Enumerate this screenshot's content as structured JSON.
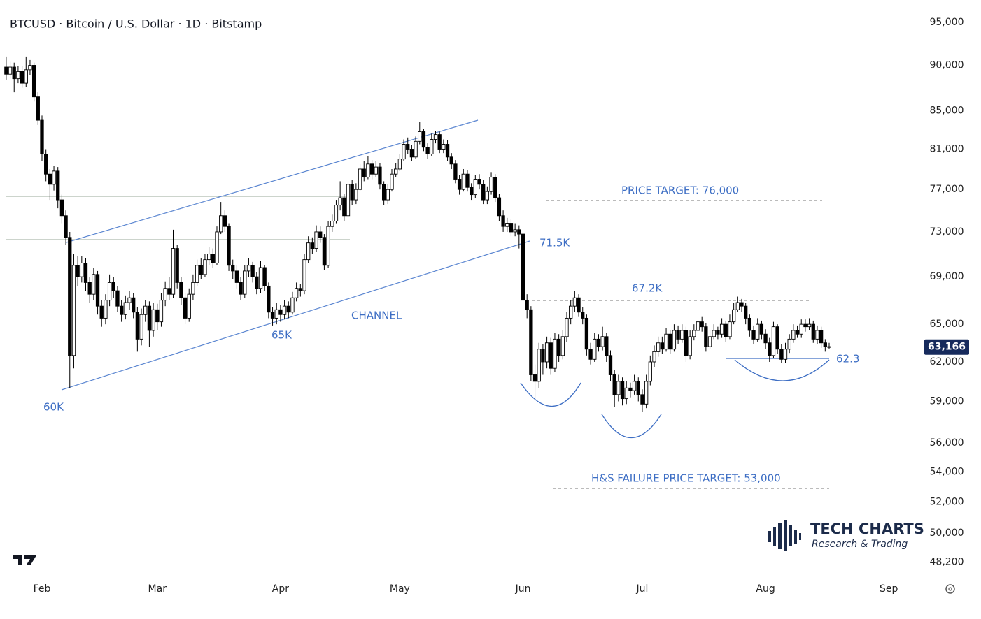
{
  "chart_data": {
    "type": "candlestick",
    "title": "BTCUSD · Bitcoin / U.S. Dollar · 1D · Bitstamp",
    "log_scale": true,
    "up_color": "#ffffff",
    "down_color": "#000000",
    "xlim": [
      -1.56,
      229
    ],
    "xticks": [
      {
        "value": 9,
        "label": "Feb"
      },
      {
        "value": 38,
        "label": "Mar"
      },
      {
        "value": 69,
        "label": "Apr"
      },
      {
        "value": 99,
        "label": "May"
      },
      {
        "value": 130,
        "label": "Jun"
      },
      {
        "value": 160,
        "label": "Jul"
      },
      {
        "value": 191,
        "label": "Aug"
      },
      {
        "value": 222,
        "label": "Sep"
      }
    ],
    "ylim": [
      47350,
      97700
    ],
    "yticks": [
      {
        "value": 95000,
        "label": "95,000"
      },
      {
        "value": 90000,
        "label": "90,000"
      },
      {
        "value": 85000,
        "label": "85,000"
      },
      {
        "value": 81000,
        "label": "81,000"
      },
      {
        "value": 77000,
        "label": "77,000"
      },
      {
        "value": 73000,
        "label": "73,000"
      },
      {
        "value": 69000,
        "label": "69,000"
      },
      {
        "value": 65000,
        "label": "65,000"
      },
      {
        "value": 62000,
        "label": "62,000"
      },
      {
        "value": 59000,
        "label": "59,000"
      },
      {
        "value": 56000,
        "label": "56,000"
      },
      {
        "value": 54000,
        "label": "54,000"
      },
      {
        "value": 52000,
        "label": "52,000"
      },
      {
        "value": 50000,
        "label": "50,000"
      },
      {
        "value": 48200,
        "label": "48,200"
      }
    ],
    "last_price_label": "63,166",
    "annotations": {
      "price_target": "PRICE TARGET: 76,000",
      "level_71": "71.5K",
      "level_67": "67.2K",
      "channel": "CHANNEL",
      "level_65": "65K",
      "level_60": "60K",
      "level_62": "62.3",
      "hs_target": "H&S FAILURE PRICE TARGET: 53,000"
    },
    "candles": [
      [
        89800,
        91000,
        88400,
        89000
      ],
      [
        89000,
        90400,
        88500,
        89800
      ],
      [
        89800,
        90300,
        87000,
        88500
      ],
      [
        88500,
        89900,
        88000,
        89300
      ],
      [
        89300,
        89900,
        87500,
        88000
      ],
      [
        88000,
        91000,
        87600,
        89500
      ],
      [
        89500,
        90600,
        88900,
        90000
      ],
      [
        90000,
        90300,
        86000,
        86500
      ],
      [
        86500,
        87000,
        83500,
        84000
      ],
      [
        84000,
        84500,
        79800,
        80500
      ],
      [
        80500,
        81000,
        77800,
        78500
      ],
      [
        78500,
        79000,
        76000,
        77500
      ],
      [
        77500,
        79300,
        76900,
        78800
      ],
      [
        78800,
        79200,
        75200,
        76000
      ],
      [
        76000,
        76500,
        73800,
        74500
      ],
      [
        74500,
        75000,
        71800,
        72500
      ],
      [
        72500,
        73000,
        60000,
        62500
      ],
      [
        62500,
        71000,
        61500,
        70000
      ],
      [
        70000,
        70800,
        68200,
        69000
      ],
      [
        69000,
        70800,
        68500,
        70200
      ],
      [
        70200,
        70600,
        67800,
        68500
      ],
      [
        68500,
        69000,
        66800,
        67500
      ],
      [
        67500,
        69800,
        67000,
        69200
      ],
      [
        69200,
        69500,
        65800,
        66500
      ],
      [
        66500,
        67000,
        64800,
        65500
      ],
      [
        65500,
        67500,
        65000,
        67000
      ],
      [
        67000,
        69200,
        66500,
        68500
      ],
      [
        68500,
        69000,
        67200,
        67800
      ],
      [
        67800,
        68200,
        66000,
        66500
      ],
      [
        66500,
        67000,
        65200,
        65800
      ],
      [
        65800,
        67400,
        65400,
        66800
      ],
      [
        66800,
        67800,
        66200,
        67200
      ],
      [
        67200,
        67600,
        65500,
        66000
      ],
      [
        66000,
        66400,
        62800,
        63800
      ],
      [
        63800,
        66300,
        63300,
        65800
      ],
      [
        65800,
        67000,
        65200,
        66500
      ],
      [
        66500,
        66900,
        63200,
        64500
      ],
      [
        64500,
        66800,
        64000,
        66200
      ],
      [
        66200,
        66700,
        64500,
        65200
      ],
      [
        65200,
        67600,
        64800,
        67000
      ],
      [
        67000,
        68600,
        66500,
        68000
      ],
      [
        68000,
        69000,
        67000,
        67500
      ],
      [
        67500,
        73200,
        67200,
        71500
      ],
      [
        71500,
        71800,
        68000,
        68500
      ],
      [
        68500,
        69000,
        66600,
        67200
      ],
      [
        67200,
        67600,
        65000,
        65500
      ],
      [
        65500,
        68000,
        65200,
        67500
      ],
      [
        67500,
        69200,
        67000,
        68500
      ],
      [
        68500,
        70500,
        68200,
        70000
      ],
      [
        70000,
        70600,
        68800,
        69200
      ],
      [
        69200,
        71000,
        69000,
        70500
      ],
      [
        70500,
        71600,
        70000,
        71000
      ],
      [
        71000,
        71500,
        69800,
        70200
      ],
      [
        70200,
        73500,
        70000,
        73000
      ],
      [
        73000,
        75800,
        72800,
        74500
      ],
      [
        74500,
        75000,
        73000,
        73500
      ],
      [
        73500,
        73800,
        69500,
        70000
      ],
      [
        70000,
        70500,
        68800,
        69500
      ],
      [
        69500,
        70000,
        68000,
        68500
      ],
      [
        68500,
        69000,
        67000,
        67500
      ],
      [
        67500,
        70000,
        67200,
        69500
      ],
      [
        69500,
        70600,
        69000,
        70000
      ],
      [
        70000,
        70300,
        68500,
        69000
      ],
      [
        69000,
        69400,
        67500,
        68000
      ],
      [
        68000,
        70400,
        67600,
        69800
      ],
      [
        69800,
        70000,
        67800,
        68200
      ],
      [
        68200,
        68500,
        65500,
        66000
      ],
      [
        66000,
        66400,
        64900,
        65500
      ],
      [
        65500,
        66800,
        65000,
        66200
      ],
      [
        66200,
        66600,
        65200,
        65800
      ],
      [
        65800,
        67000,
        65400,
        66500
      ],
      [
        66500,
        66900,
        65500,
        66000
      ],
      [
        66000,
        67700,
        65800,
        67200
      ],
      [
        67200,
        68500,
        66900,
        68000
      ],
      [
        68000,
        68400,
        67300,
        67800
      ],
      [
        67800,
        71000,
        67500,
        70500
      ],
      [
        70500,
        72600,
        70200,
        72000
      ],
      [
        72000,
        72500,
        71000,
        71500
      ],
      [
        71500,
        73600,
        71200,
        73000
      ],
      [
        73000,
        73500,
        72000,
        72500
      ],
      [
        72500,
        72800,
        69600,
        70000
      ],
      [
        70000,
        74000,
        69800,
        73500
      ],
      [
        73500,
        74600,
        73000,
        74000
      ],
      [
        74000,
        76000,
        73800,
        75500
      ],
      [
        75500,
        77800,
        75000,
        76200
      ],
      [
        76200,
        76600,
        74000,
        74500
      ],
      [
        74500,
        78000,
        74200,
        77500
      ],
      [
        77500,
        77900,
        75500,
        76000
      ],
      [
        76000,
        77600,
        75600,
        77000
      ],
      [
        77000,
        79500,
        76800,
        79000
      ],
      [
        79000,
        79800,
        77800,
        78200
      ],
      [
        78200,
        80300,
        78000,
        79500
      ],
      [
        79500,
        79900,
        78000,
        78500
      ],
      [
        78500,
        79800,
        78200,
        79200
      ],
      [
        79200,
        79600,
        77000,
        77500
      ],
      [
        77500,
        77800,
        75500,
        76000
      ],
      [
        76000,
        77500,
        75600,
        77000
      ],
      [
        77000,
        79000,
        76800,
        78500
      ],
      [
        78500,
        79600,
        78200,
        79000
      ],
      [
        79000,
        80500,
        78800,
        80000
      ],
      [
        80000,
        82000,
        79800,
        81500
      ],
      [
        81500,
        82200,
        80500,
        81000
      ],
      [
        81000,
        81400,
        79800,
        80200
      ],
      [
        80200,
        82300,
        80000,
        81800
      ],
      [
        81800,
        83800,
        81500,
        82800
      ],
      [
        82800,
        83100,
        80800,
        81200
      ],
      [
        81200,
        81600,
        80000,
        80500
      ],
      [
        80500,
        82600,
        80300,
        82000
      ],
      [
        82000,
        82900,
        81600,
        82500
      ],
      [
        82500,
        82800,
        80600,
        81000
      ],
      [
        81000,
        82000,
        80600,
        81500
      ],
      [
        81500,
        81900,
        79800,
        80200
      ],
      [
        80200,
        80600,
        79000,
        79500
      ],
      [
        79500,
        79900,
        77600,
        78000
      ],
      [
        78000,
        78400,
        76500,
        77000
      ],
      [
        77000,
        79000,
        76800,
        78500
      ],
      [
        78500,
        78900,
        76800,
        77200
      ],
      [
        77200,
        77600,
        76000,
        76500
      ],
      [
        76500,
        78400,
        76200,
        78000
      ],
      [
        78000,
        78500,
        77000,
        77500
      ],
      [
        77500,
        77900,
        75600,
        76000
      ],
      [
        76000,
        77300,
        75600,
        76800
      ],
      [
        76800,
        78700,
        76500,
        78200
      ],
      [
        78200,
        78500,
        75800,
        76200
      ],
      [
        76200,
        76600,
        74000,
        74500
      ],
      [
        74500,
        75000,
        73000,
        73500
      ],
      [
        73500,
        74300,
        73000,
        73800
      ],
      [
        73800,
        74200,
        72600,
        73000
      ],
      [
        73000,
        73800,
        72600,
        73200
      ],
      [
        73200,
        73600,
        71500,
        72800
      ],
      [
        72800,
        73200,
        66500,
        67000
      ],
      [
        67000,
        67500,
        65500,
        66200
      ],
      [
        66200,
        66500,
        60500,
        61000
      ],
      [
        61000,
        61800,
        59200,
        60500
      ],
      [
        60500,
        63500,
        60000,
        63000
      ],
      [
        63000,
        63400,
        61000,
        62000
      ],
      [
        62000,
        64000,
        61500,
        63500
      ],
      [
        63500,
        63900,
        61000,
        61500
      ],
      [
        61500,
        64300,
        61200,
        63800
      ],
      [
        63800,
        64200,
        62000,
        62500
      ],
      [
        62500,
        64500,
        62200,
        64000
      ],
      [
        64000,
        66000,
        63600,
        65500
      ],
      [
        65500,
        67000,
        65000,
        66500
      ],
      [
        66500,
        67800,
        66000,
        67200
      ],
      [
        67200,
        67500,
        65600,
        66000
      ],
      [
        66000,
        66400,
        65000,
        65500
      ],
      [
        65500,
        65800,
        62500,
        63000
      ],
      [
        63000,
        63500,
        61800,
        62200
      ],
      [
        62200,
        64300,
        62000,
        63800
      ],
      [
        63800,
        64200,
        62800,
        63200
      ],
      [
        63200,
        64800,
        62900,
        64000
      ],
      [
        64000,
        64300,
        62000,
        62500
      ],
      [
        62500,
        62900,
        60500,
        61000
      ],
      [
        61000,
        61400,
        58600,
        59500
      ],
      [
        59500,
        61000,
        59000,
        60500
      ],
      [
        60500,
        60800,
        58700,
        59200
      ],
      [
        59200,
        60500,
        58800,
        60000
      ],
      [
        60000,
        60400,
        59300,
        59800
      ],
      [
        59800,
        61000,
        59500,
        60500
      ],
      [
        60500,
        60800,
        59000,
        59500
      ],
      [
        59500,
        59900,
        58200,
        58800
      ],
      [
        58800,
        61000,
        58500,
        60500
      ],
      [
        60500,
        62500,
        60200,
        62000
      ],
      [
        62000,
        63300,
        61600,
        62800
      ],
      [
        62800,
        64000,
        62400,
        63500
      ],
      [
        63500,
        64000,
        62600,
        63000
      ],
      [
        63000,
        64700,
        62800,
        64200
      ],
      [
        64200,
        64500,
        62600,
        63000
      ],
      [
        63000,
        65000,
        62800,
        64500
      ],
      [
        64500,
        64900,
        63400,
        63800
      ],
      [
        63800,
        65000,
        63500,
        64500
      ],
      [
        64500,
        64800,
        62000,
        62500
      ],
      [
        62500,
        64500,
        62200,
        64000
      ],
      [
        64000,
        65000,
        63700,
        64500
      ],
      [
        64500,
        65700,
        64200,
        65200
      ],
      [
        65200,
        65600,
        64400,
        64800
      ],
      [
        64800,
        65100,
        62800,
        63200
      ],
      [
        63200,
        64500,
        63000,
        64000
      ],
      [
        64000,
        65000,
        63800,
        64500
      ],
      [
        64500,
        64800,
        63800,
        64200
      ],
      [
        64200,
        65500,
        63900,
        65000
      ],
      [
        65000,
        65300,
        63600,
        64000
      ],
      [
        64000,
        65800,
        63800,
        65200
      ],
      [
        65200,
        66800,
        65000,
        66200
      ],
      [
        66200,
        67300,
        66000,
        66800
      ],
      [
        66800,
        67100,
        66000,
        66500
      ],
      [
        66500,
        66800,
        65000,
        65500
      ],
      [
        65500,
        65800,
        64000,
        64500
      ],
      [
        64500,
        64900,
        63400,
        63800
      ],
      [
        63800,
        65500,
        63600,
        65000
      ],
      [
        65000,
        65300,
        63800,
        64200
      ],
      [
        64200,
        64600,
        63000,
        63500
      ],
      [
        63500,
        63900,
        62000,
        62500
      ],
      [
        62500,
        65200,
        62300,
        64800
      ],
      [
        64800,
        65000,
        62600,
        63000
      ],
      [
        63000,
        63400,
        61900,
        62200
      ],
      [
        62200,
        63500,
        61900,
        63000
      ],
      [
        63000,
        64200,
        62700,
        63800
      ],
      [
        63800,
        65000,
        63500,
        64500
      ],
      [
        64500,
        64900,
        63900,
        64200
      ],
      [
        64200,
        65400,
        63900,
        65000
      ],
      [
        65000,
        65400,
        64400,
        64800
      ],
      [
        64800,
        65500,
        64500,
        65000
      ],
      [
        65000,
        65300,
        63500,
        63800
      ],
      [
        63800,
        64900,
        63400,
        64500
      ],
      [
        64500,
        64800,
        63100,
        63500
      ],
      [
        63500,
        63800,
        62800,
        63200
      ],
      [
        63200,
        63500,
        63000,
        63166
      ]
    ]
  },
  "logo": {
    "name": "TECH CHARTS",
    "tagline": "Research & Trading"
  }
}
